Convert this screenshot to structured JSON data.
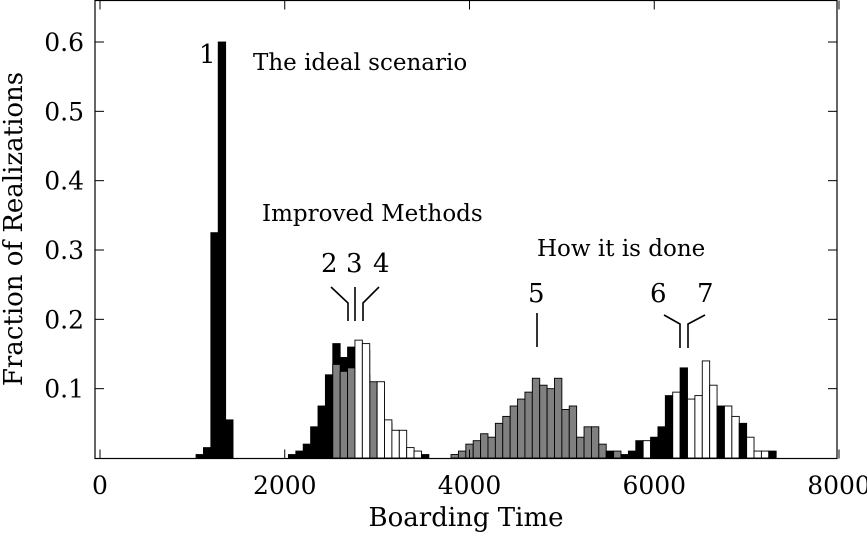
{
  "chart_data": {
    "type": "bar",
    "title": "",
    "xlabel": "Boarding Time",
    "ylabel": "Fraction of Realizations",
    "xlim": [
      0,
      8000
    ],
    "ylim": [
      0,
      0.65
    ],
    "xticks": [
      0,
      2000,
      4000,
      6000,
      8000
    ],
    "xtick_labels": [
      "0",
      "2000",
      "4000",
      "6000",
      "8000"
    ],
    "yticks": [
      0.1,
      0.2,
      0.3,
      0.4,
      0.5,
      0.6
    ],
    "ytick_labels": [
      "0.1",
      "0.2",
      "0.3",
      "0.4",
      "0.5",
      "0.6"
    ],
    "bin_width": 80,
    "grid": false,
    "legend": "none",
    "colors": {
      "black": "#000000",
      "gray": "#808080",
      "white": "#ffffff"
    },
    "annotations": [
      {
        "id": "ideal",
        "text": "The ideal scenario"
      },
      {
        "id": "improved",
        "text": "Improved Methods"
      },
      {
        "id": "howdone",
        "text": "How it is done"
      },
      {
        "id": "n1",
        "text": "1"
      },
      {
        "id": "n2",
        "text": "2"
      },
      {
        "id": "n3",
        "text": "3"
      },
      {
        "id": "n4",
        "text": "4"
      },
      {
        "id": "n5",
        "text": "5"
      },
      {
        "id": "n6",
        "text": "6"
      },
      {
        "id": "n7",
        "text": "7"
      }
    ],
    "bars": [
      {
        "x": 1080,
        "y": 0.005,
        "fill": "black"
      },
      {
        "x": 1160,
        "y": 0.015,
        "fill": "black"
      },
      {
        "x": 1240,
        "y": 0.325,
        "fill": "black"
      },
      {
        "x": 1320,
        "y": 0.6,
        "fill": "black"
      },
      {
        "x": 1400,
        "y": 0.055,
        "fill": "black"
      },
      {
        "x": 2080,
        "y": 0.005,
        "fill": "black"
      },
      {
        "x": 2160,
        "y": 0.01,
        "fill": "black"
      },
      {
        "x": 2240,
        "y": 0.02,
        "fill": "black"
      },
      {
        "x": 2320,
        "y": 0.045,
        "fill": "black"
      },
      {
        "x": 2400,
        "y": 0.075,
        "fill": "black"
      },
      {
        "x": 2480,
        "y": 0.12,
        "fill": "black"
      },
      {
        "x": 2560,
        "y": 0.165,
        "fill": "black"
      },
      {
        "x": 2640,
        "y": 0.145,
        "fill": "black"
      },
      {
        "x": 2720,
        "y": 0.16,
        "fill": "black"
      },
      {
        "x": 2800,
        "y": 0.145,
        "fill": "black"
      },
      {
        "x": 2880,
        "y": 0.12,
        "fill": "black"
      },
      {
        "x": 2960,
        "y": 0.08,
        "fill": "black"
      },
      {
        "x": 3040,
        "y": 0.045,
        "fill": "black"
      },
      {
        "x": 3120,
        "y": 0.015,
        "fill": "black"
      },
      {
        "x": 3200,
        "y": 0.01,
        "fill": "black"
      },
      {
        "x": 2560,
        "y": 0.135,
        "fill": "gray"
      },
      {
        "x": 2640,
        "y": 0.125,
        "fill": "gray"
      },
      {
        "x": 2720,
        "y": 0.13,
        "fill": "gray"
      },
      {
        "x": 2800,
        "y": 0.165,
        "fill": "gray"
      },
      {
        "x": 2880,
        "y": 0.155,
        "fill": "gray"
      },
      {
        "x": 2960,
        "y": 0.11,
        "fill": "gray"
      },
      {
        "x": 3040,
        "y": 0.095,
        "fill": "gray"
      },
      {
        "x": 3120,
        "y": 0.05,
        "fill": "gray"
      },
      {
        "x": 3200,
        "y": 0.02,
        "fill": "gray"
      },
      {
        "x": 3280,
        "y": 0.01,
        "fill": "gray"
      },
      {
        "x": 2800,
        "y": 0.17,
        "fill": "white"
      },
      {
        "x": 2880,
        "y": 0.165,
        "fill": "white"
      },
      {
        "x": 3040,
        "y": 0.11,
        "fill": "white"
      },
      {
        "x": 3120,
        "y": 0.055,
        "fill": "white"
      },
      {
        "x": 3200,
        "y": 0.04,
        "fill": "white"
      },
      {
        "x": 3280,
        "y": 0.04,
        "fill": "white"
      },
      {
        "x": 3360,
        "y": 0.015,
        "fill": "white"
      },
      {
        "x": 3440,
        "y": 0.01,
        "fill": "white"
      },
      {
        "x": 3520,
        "y": 0.005,
        "fill": "black"
      },
      {
        "x": 3840,
        "y": 0.005,
        "fill": "gray"
      },
      {
        "x": 3920,
        "y": 0.01,
        "fill": "gray"
      },
      {
        "x": 4000,
        "y": 0.02,
        "fill": "gray"
      },
      {
        "x": 4080,
        "y": 0.025,
        "fill": "gray"
      },
      {
        "x": 4160,
        "y": 0.035,
        "fill": "gray"
      },
      {
        "x": 4240,
        "y": 0.03,
        "fill": "gray"
      },
      {
        "x": 4320,
        "y": 0.05,
        "fill": "gray"
      },
      {
        "x": 4400,
        "y": 0.06,
        "fill": "gray"
      },
      {
        "x": 4480,
        "y": 0.075,
        "fill": "gray"
      },
      {
        "x": 4560,
        "y": 0.085,
        "fill": "gray"
      },
      {
        "x": 4640,
        "y": 0.095,
        "fill": "gray"
      },
      {
        "x": 4720,
        "y": 0.115,
        "fill": "gray"
      },
      {
        "x": 4800,
        "y": 0.105,
        "fill": "gray"
      },
      {
        "x": 4880,
        "y": 0.1,
        "fill": "gray"
      },
      {
        "x": 4960,
        "y": 0.115,
        "fill": "gray"
      },
      {
        "x": 5040,
        "y": 0.07,
        "fill": "gray"
      },
      {
        "x": 5120,
        "y": 0.075,
        "fill": "gray"
      },
      {
        "x": 5200,
        "y": 0.03,
        "fill": "gray"
      },
      {
        "x": 5280,
        "y": 0.045,
        "fill": "gray"
      },
      {
        "x": 5360,
        "y": 0.045,
        "fill": "gray"
      },
      {
        "x": 5440,
        "y": 0.02,
        "fill": "gray"
      },
      {
        "x": 5520,
        "y": 0.01,
        "fill": "black"
      },
      {
        "x": 5600,
        "y": 0.01,
        "fill": "gray"
      },
      {
        "x": 5680,
        "y": 0.005,
        "fill": "black"
      },
      {
        "x": 5760,
        "y": 0.01,
        "fill": "black"
      },
      {
        "x": 5840,
        "y": 0.025,
        "fill": "black"
      },
      {
        "x": 5920,
        "y": 0.025,
        "fill": "white"
      },
      {
        "x": 6000,
        "y": 0.03,
        "fill": "black"
      },
      {
        "x": 6080,
        "y": 0.045,
        "fill": "black"
      },
      {
        "x": 6160,
        "y": 0.09,
        "fill": "black"
      },
      {
        "x": 6240,
        "y": 0.095,
        "fill": "white"
      },
      {
        "x": 6320,
        "y": 0.13,
        "fill": "black"
      },
      {
        "x": 6400,
        "y": 0.085,
        "fill": "white"
      },
      {
        "x": 6480,
        "y": 0.09,
        "fill": "white"
      },
      {
        "x": 6560,
        "y": 0.14,
        "fill": "white"
      },
      {
        "x": 6640,
        "y": 0.105,
        "fill": "white"
      },
      {
        "x": 6720,
        "y": 0.075,
        "fill": "black"
      },
      {
        "x": 6800,
        "y": 0.075,
        "fill": "white"
      },
      {
        "x": 6880,
        "y": 0.06,
        "fill": "white"
      },
      {
        "x": 6960,
        "y": 0.05,
        "fill": "black"
      },
      {
        "x": 7040,
        "y": 0.03,
        "fill": "white"
      },
      {
        "x": 7120,
        "y": 0.01,
        "fill": "white"
      },
      {
        "x": 7200,
        "y": 0.01,
        "fill": "white"
      },
      {
        "x": 7280,
        "y": 0.01,
        "fill": "black"
      }
    ]
  }
}
